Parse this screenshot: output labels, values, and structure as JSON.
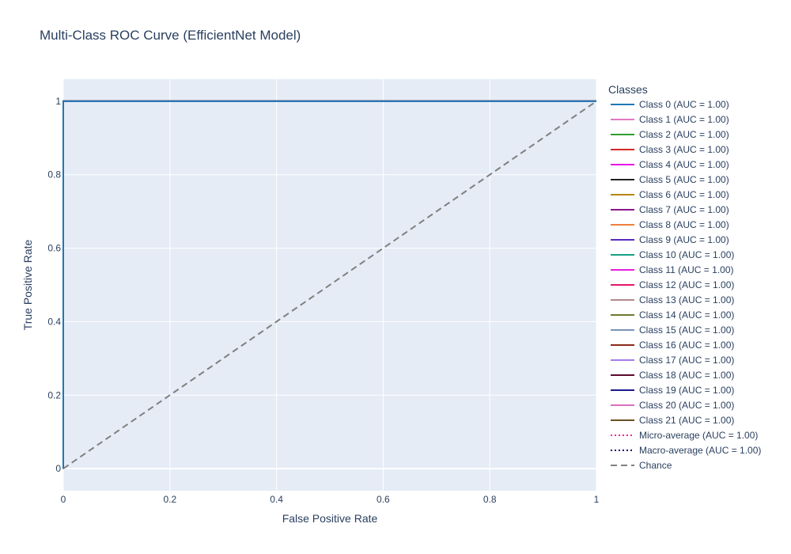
{
  "chart_data": {
    "type": "line",
    "title": "Multi-Class ROC Curve (EfficientNet Model)",
    "xlabel": "False Positive Rate",
    "ylabel": "True Positive Rate",
    "xlim": [
      0,
      1
    ],
    "ylim": [
      -0.06,
      1.06
    ],
    "x_ticks": [
      0,
      0.2,
      0.4,
      0.6,
      0.8,
      1
    ],
    "x_tick_labels": [
      "0",
      "0.2",
      "0.4",
      "0.6",
      "0.8",
      "1"
    ],
    "y_ticks": [
      0,
      0.2,
      0.4,
      0.6,
      0.8,
      1
    ],
    "y_tick_labels": [
      "0",
      "0.2",
      "0.4",
      "0.6",
      "0.8",
      "1"
    ],
    "grid": true,
    "legend_title": "Classes",
    "legend_position": "right",
    "colors": {
      "plot_bg": "#e5ecf6",
      "grid": "#ffffff",
      "text": "#2a3f5f"
    },
    "series": [
      {
        "name": "Class 0 (AUC = 1.00)",
        "color": "#1f77b4",
        "dash": "solid",
        "x": [
          0,
          0,
          1
        ],
        "y": [
          0,
          1,
          1
        ]
      },
      {
        "name": "Class 1 (AUC = 1.00)",
        "color": "#e377c2",
        "dash": "solid",
        "x": [
          0,
          0,
          1
        ],
        "y": [
          0,
          1,
          1
        ]
      },
      {
        "name": "Class 2 (AUC = 1.00)",
        "color": "#2ca02c",
        "dash": "solid",
        "x": [
          0,
          0,
          1
        ],
        "y": [
          0,
          1,
          1
        ]
      },
      {
        "name": "Class 3 (AUC = 1.00)",
        "color": "#d62728",
        "dash": "solid",
        "x": [
          0,
          0,
          1
        ],
        "y": [
          0,
          1,
          1
        ]
      },
      {
        "name": "Class 4 (AUC = 1.00)",
        "color": "#e815e8",
        "dash": "solid",
        "x": [
          0,
          0,
          1
        ],
        "y": [
          0,
          1,
          1
        ]
      },
      {
        "name": "Class 5 (AUC = 1.00)",
        "color": "#222222",
        "dash": "solid",
        "x": [
          0,
          0,
          1
        ],
        "y": [
          0,
          1,
          1
        ]
      },
      {
        "name": "Class 6 (AUC = 1.00)",
        "color": "#b8860b",
        "dash": "solid",
        "x": [
          0,
          0,
          1
        ],
        "y": [
          0,
          1,
          1
        ]
      },
      {
        "name": "Class 7 (AUC = 1.00)",
        "color": "#8b168b",
        "dash": "solid",
        "x": [
          0,
          0,
          1
        ],
        "y": [
          0,
          1,
          1
        ]
      },
      {
        "name": "Class 8 (AUC = 1.00)",
        "color": "#f07f3c",
        "dash": "solid",
        "x": [
          0,
          0,
          1
        ],
        "y": [
          0,
          1,
          1
        ]
      },
      {
        "name": "Class 9 (AUC = 1.00)",
        "color": "#5a2bc0",
        "dash": "solid",
        "x": [
          0,
          0,
          1
        ],
        "y": [
          0,
          1,
          1
        ]
      },
      {
        "name": "Class 10 (AUC = 1.00)",
        "color": "#16a085",
        "dash": "solid",
        "x": [
          0,
          0,
          1
        ],
        "y": [
          0,
          1,
          1
        ]
      },
      {
        "name": "Class 11 (AUC = 1.00)",
        "color": "#e91edc",
        "dash": "solid",
        "x": [
          0,
          0,
          1
        ],
        "y": [
          0,
          1,
          1
        ]
      },
      {
        "name": "Class 12 (AUC = 1.00)",
        "color": "#e8186e",
        "dash": "solid",
        "x": [
          0,
          0,
          1
        ],
        "y": [
          0,
          1,
          1
        ]
      },
      {
        "name": "Class 13 (AUC = 1.00)",
        "color": "#b08a8e",
        "dash": "solid",
        "x": [
          0,
          0,
          1
        ],
        "y": [
          0,
          1,
          1
        ]
      },
      {
        "name": "Class 14 (AUC = 1.00)",
        "color": "#6b7a2f",
        "dash": "solid",
        "x": [
          0,
          0,
          1
        ],
        "y": [
          0,
          1,
          1
        ]
      },
      {
        "name": "Class 15 (AUC = 1.00)",
        "color": "#7a93b8",
        "dash": "solid",
        "x": [
          0,
          0,
          1
        ],
        "y": [
          0,
          1,
          1
        ]
      },
      {
        "name": "Class 16 (AUC = 1.00)",
        "color": "#8b2a1a",
        "dash": "solid",
        "x": [
          0,
          0,
          1
        ],
        "y": [
          0,
          1,
          1
        ]
      },
      {
        "name": "Class 17 (AUC = 1.00)",
        "color": "#a77be8",
        "dash": "solid",
        "x": [
          0,
          0,
          1
        ],
        "y": [
          0,
          1,
          1
        ]
      },
      {
        "name": "Class 18 (AUC = 1.00)",
        "color": "#5c0a2e",
        "dash": "solid",
        "x": [
          0,
          0,
          1
        ],
        "y": [
          0,
          1,
          1
        ]
      },
      {
        "name": "Class 19 (AUC = 1.00)",
        "color": "#1a1a8c",
        "dash": "solid",
        "x": [
          0,
          0,
          1
        ],
        "y": [
          0,
          1,
          1
        ]
      },
      {
        "name": "Class 20 (AUC = 1.00)",
        "color": "#d870c0",
        "dash": "solid",
        "x": [
          0,
          0,
          1
        ],
        "y": [
          0,
          1,
          1
        ]
      },
      {
        "name": "Class 21 (AUC = 1.00)",
        "color": "#6b5222",
        "dash": "solid",
        "x": [
          0,
          0,
          1
        ],
        "y": [
          0,
          1,
          1
        ]
      },
      {
        "name": "Micro-average (AUC = 1.00)",
        "color": "#ff1f8f",
        "dash": "dot",
        "x": [
          0,
          0,
          1
        ],
        "y": [
          0,
          1,
          1
        ]
      },
      {
        "name": "Macro-average (AUC = 1.00)",
        "color": "#0a0a6e",
        "dash": "dot",
        "x": [
          0,
          0,
          1
        ],
        "y": [
          0,
          1,
          1
        ]
      },
      {
        "name": "Chance",
        "color": "#808080",
        "dash": "dash",
        "x": [
          0,
          1
        ],
        "y": [
          0,
          1
        ]
      }
    ]
  }
}
